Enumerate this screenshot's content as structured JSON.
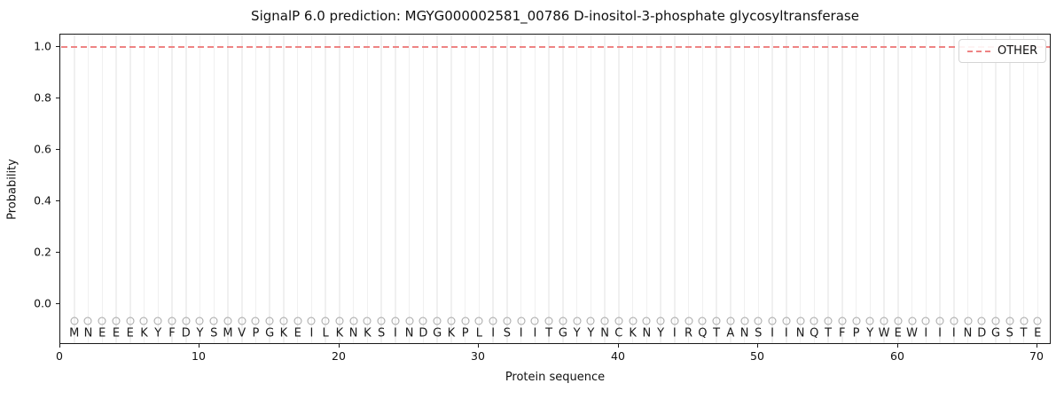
{
  "chart_data": {
    "type": "line",
    "title": "SignalP 6.0 prediction: MGYG000002581_00786 D-inositol-3-phosphate glycosyltransferase",
    "xlabel": "Protein sequence",
    "ylabel": "Probability",
    "xlim": [
      0,
      71
    ],
    "ylim": [
      -0.159,
      1.048
    ],
    "x_ticks": [
      0,
      10,
      20,
      30,
      40,
      50,
      60,
      70
    ],
    "y_ticks": [
      "0.0",
      "0.2",
      "0.4",
      "0.6",
      "0.8",
      "1.0"
    ],
    "grid": "vertical gridline at every residue position, light gray",
    "legend": {
      "position": "upper right",
      "entries": [
        {
          "label": "OTHER",
          "color": "#ee8484",
          "style": "dashed"
        }
      ]
    },
    "series": [
      {
        "name": "OTHER",
        "style": "dashed",
        "color": "#ee8484",
        "constant_y": 1.0,
        "x_range": [
          0,
          71
        ],
        "note": "flat dashed line at probability 1.0 across the entire sequence"
      }
    ],
    "residue_markers": {
      "shape": "open-circle",
      "color": "#a6a6a6",
      "y": -0.05
    },
    "residues": [
      "M",
      "N",
      "E",
      "E",
      "E",
      "K",
      "Y",
      "F",
      "D",
      "Y",
      "S",
      "M",
      "V",
      "P",
      "G",
      "K",
      "E",
      "I",
      "L",
      "K",
      "N",
      "K",
      "S",
      "I",
      "N",
      "D",
      "G",
      "K",
      "P",
      "L",
      "I",
      "S",
      "I",
      "I",
      "T",
      "G",
      "Y",
      "Y",
      "N",
      "C",
      "K",
      "N",
      "Y",
      "I",
      "R",
      "Q",
      "T",
      "A",
      "N",
      "S",
      "I",
      "I",
      "N",
      "Q",
      "T",
      "F",
      "P",
      "Y",
      "W",
      "E",
      "W",
      "I",
      "I",
      "I",
      "N",
      "D",
      "G",
      "S",
      "T",
      "E"
    ]
  },
  "colors": {
    "line": "#ee8484",
    "gridline": "#f0f0f0",
    "marker": "#a6a6a6",
    "text": "#111111"
  }
}
